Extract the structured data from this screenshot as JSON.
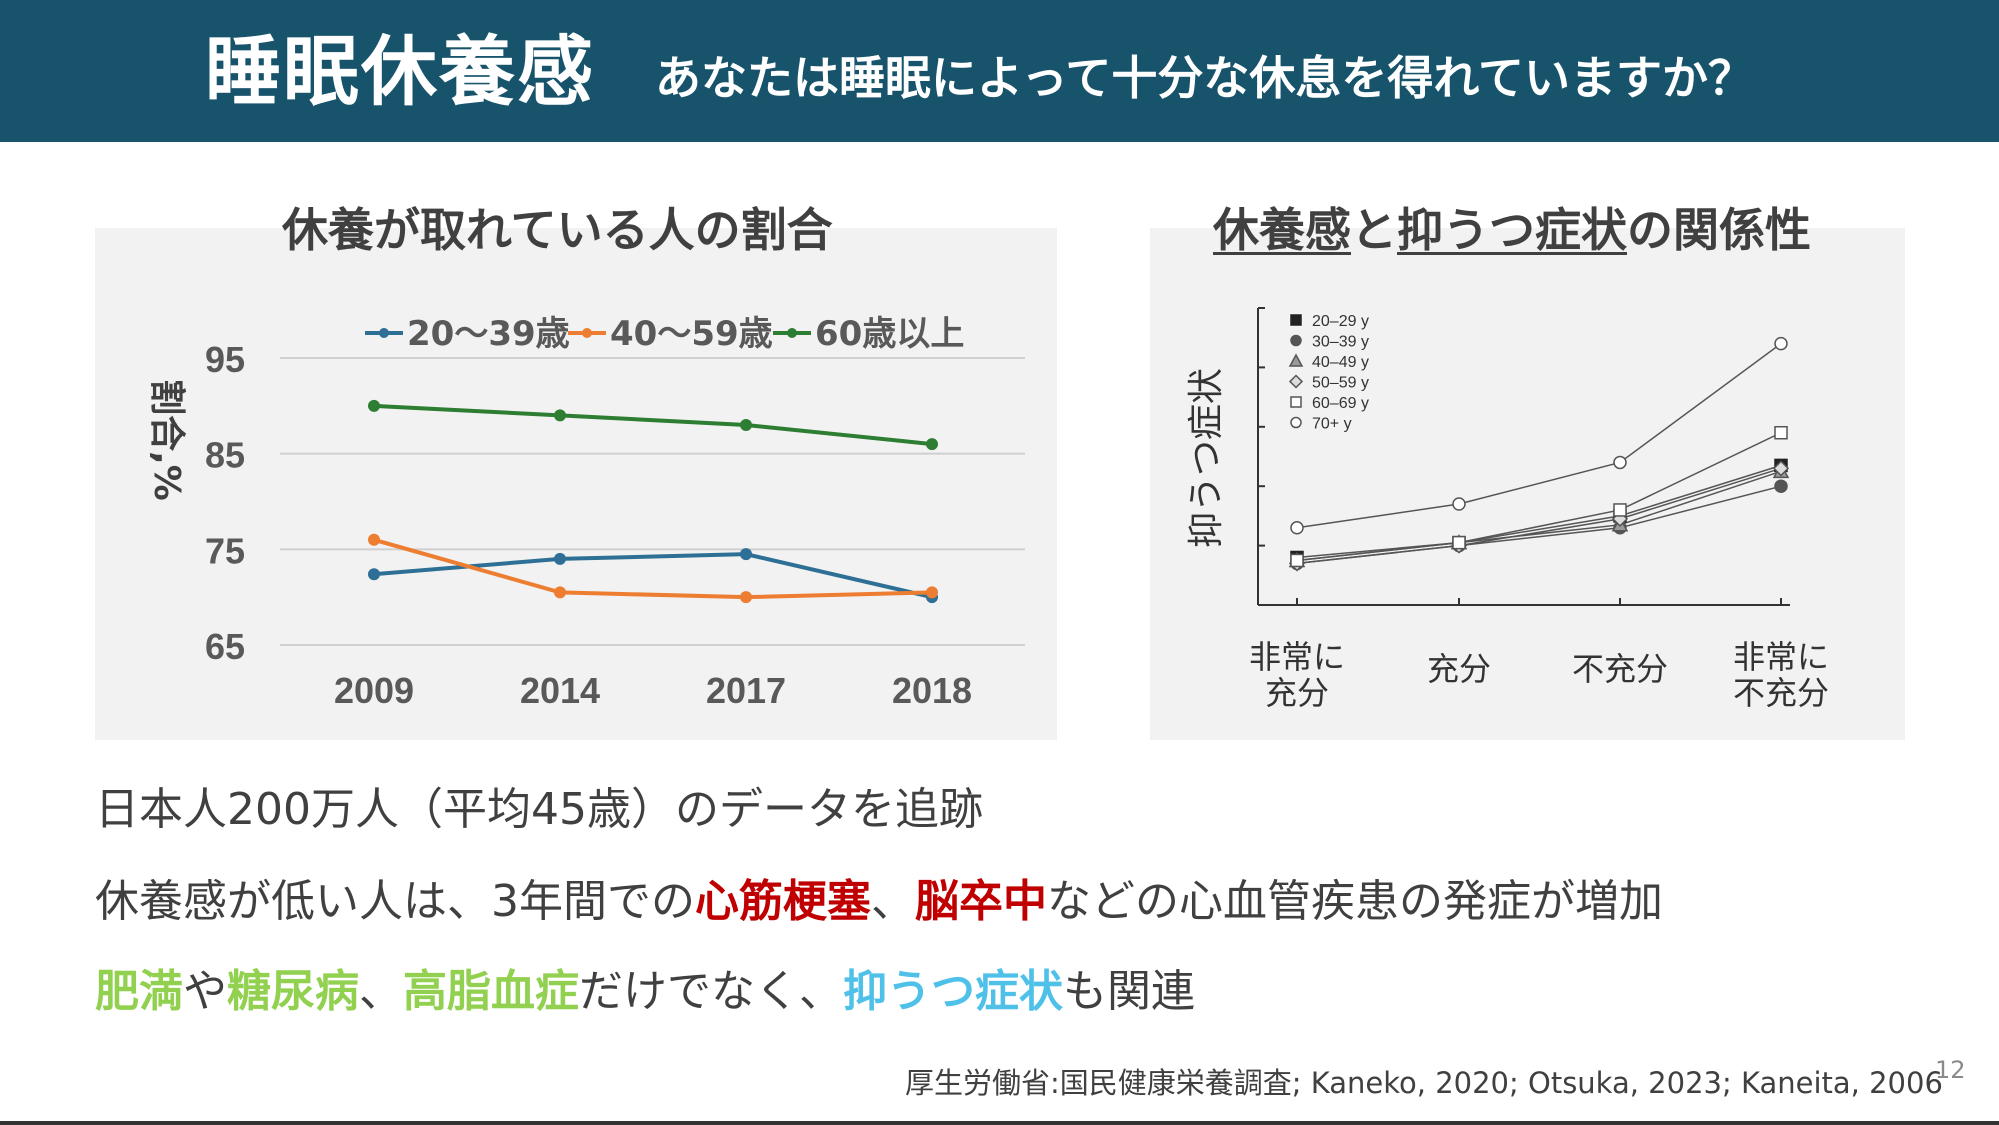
{
  "header": {
    "title": "睡眠休養感",
    "subtitle": "あなたは睡眠によって十分な休息を得れていますか？"
  },
  "colors": {
    "header_bg": "#17536b",
    "series_20_39": "#2e6f95",
    "series_40_59": "#ed7d31",
    "series_60_plus": "#2d7d32",
    "emphasis_red": "#c00000",
    "emphasis_green": "#92d050",
    "emphasis_blue": "#4fc1e9"
  },
  "chart_data": [
    {
      "type": "line",
      "title": "休養が取れている人の割合",
      "xlabel": "",
      "ylabel": "割合,%",
      "categories": [
        "2009",
        "2014",
        "2017",
        "2018"
      ],
      "yticks": [
        "95",
        "85",
        "75",
        "65"
      ],
      "ylim": [
        65,
        95
      ],
      "grid": true,
      "legend": "top",
      "series": [
        {
          "name": "20〜39歳",
          "values": [
            72.4,
            74.0,
            74.5,
            70.0
          ]
        },
        {
          "name": "40〜59歳",
          "values": [
            76.0,
            70.5,
            70.0,
            70.5
          ]
        },
        {
          "name": "60歳以上",
          "values": [
            90.0,
            89.0,
            88.0,
            86.0
          ]
        }
      ]
    },
    {
      "type": "line",
      "title_parts": [
        "休養感",
        "と",
        "抑うつ症状",
        "の関係性"
      ],
      "xlabel": "",
      "ylabel": "抑うつ症状",
      "categories": [
        "非常に\n充分",
        "充分",
        "不充分",
        "非常に\n不充分"
      ],
      "ylim": [
        0,
        10
      ],
      "grid": false,
      "legend": "top-left",
      "series": [
        {
          "name": "20–29 y",
          "marker": "square-filled",
          "values": [
            1.6,
            2.1,
            3.0,
            4.7
          ]
        },
        {
          "name": "30–39 y",
          "marker": "circle-filled",
          "values": [
            1.4,
            2.0,
            2.6,
            4.0
          ]
        },
        {
          "name": "40–49 y",
          "marker": "triangle",
          "values": [
            1.5,
            2.1,
            2.7,
            4.5
          ]
        },
        {
          "name": "50–59 y",
          "marker": "diamond",
          "values": [
            1.4,
            2.0,
            2.9,
            4.6
          ]
        },
        {
          "name": "60–69 y",
          "marker": "square-open",
          "values": [
            1.5,
            2.1,
            3.2,
            5.8
          ]
        },
        {
          "name": "70+ y",
          "marker": "circle-open",
          "values": [
            2.6,
            3.4,
            4.8,
            8.8
          ]
        }
      ]
    }
  ],
  "body": {
    "line1": "日本人200万人（平均45歳）のデータを追跡",
    "line2": {
      "p1": "休養感が低い人は、3年間での",
      "r1": "心筋梗塞",
      "p2": "、",
      "r2": "脳卒中",
      "p3": "などの心血管疾患の発症が増加"
    },
    "line3": {
      "g1": "肥満",
      "p1": "や",
      "g2": "糖尿病",
      "p2": "、",
      "g3": "高脂血症",
      "p3": "だけでなく、",
      "b1": "抑うつ症状",
      "p4": "も関連"
    }
  },
  "footer": {
    "source": "厚生労働省:国民健康栄養調査; Kaneko, 2020; Otsuka, 2023; Kaneita, 2006",
    "page_number": "12"
  }
}
